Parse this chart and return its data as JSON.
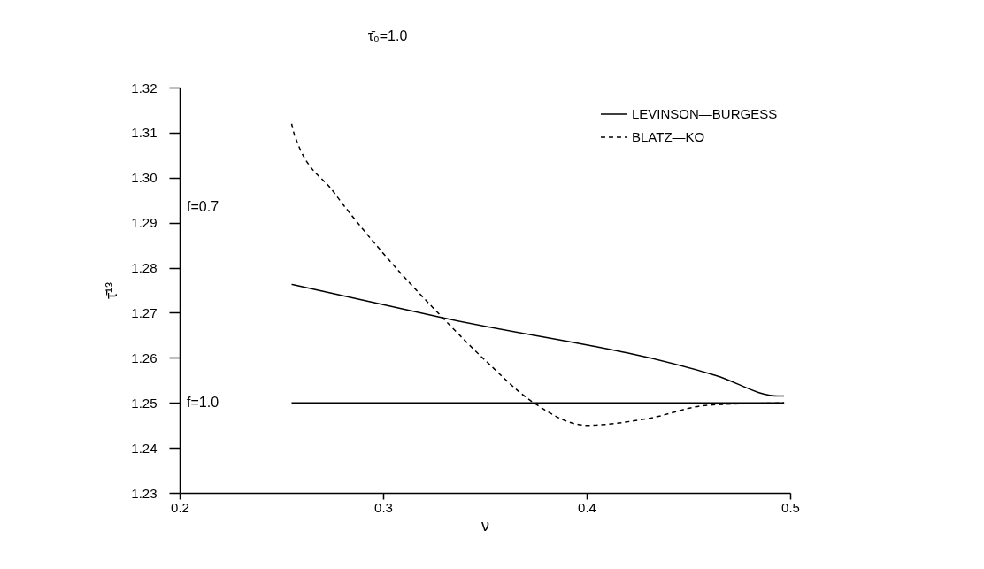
{
  "chart_data": {
    "type": "line",
    "xlabel": "ν",
    "ylabel": "τ̄¹³",
    "xlim": [
      0.2,
      0.5
    ],
    "xticks": [
      0.2,
      0.3,
      0.4,
      0.5
    ],
    "ylim": [
      1.23,
      1.32
    ],
    "yticks": [
      1.23,
      1.24,
      1.25,
      1.26,
      1.27,
      1.28,
      1.29,
      {
        "value": 1.3,
        "label": "1.30"
      },
      1.31,
      1.32
    ],
    "grid": false,
    "legend": "top right",
    "marker": "none",
    "series": [
      {
        "name": "LEVINSON—BURGESS",
        "color": "#000000",
        "line_style": "solid",
        "x": [
          0.255,
          0.329,
          0.464,
          0.494,
          0.497
        ],
        "values": [
          1.2763,
          1.2689,
          1.256,
          1.2515,
          1.2515
        ]
      },
      {
        "name": "BLATZ—KO",
        "color": "#000000",
        "line_style": "dashed",
        "x": [
          0.255,
          0.2565,
          0.2757,
          0.2987,
          0.329,
          0.35,
          0.374,
          0.4,
          0.43,
          0.46,
          0.497
        ],
        "values": [
          1.312,
          1.3094,
          1.2968,
          1.2839,
          1.269,
          1.2595,
          1.25,
          1.245,
          1.2465,
          1.2495,
          1.25
        ]
      },
      {
        "color": "#000000",
        "line_style": "solid",
        "x": [
          0.255,
          0.497
        ],
        "values": [
          1.25,
          1.25
        ]
      }
    ],
    "annotations": [
      "τ̄₀=1.0",
      "f=0.7",
      "f=1.0"
    ]
  }
}
